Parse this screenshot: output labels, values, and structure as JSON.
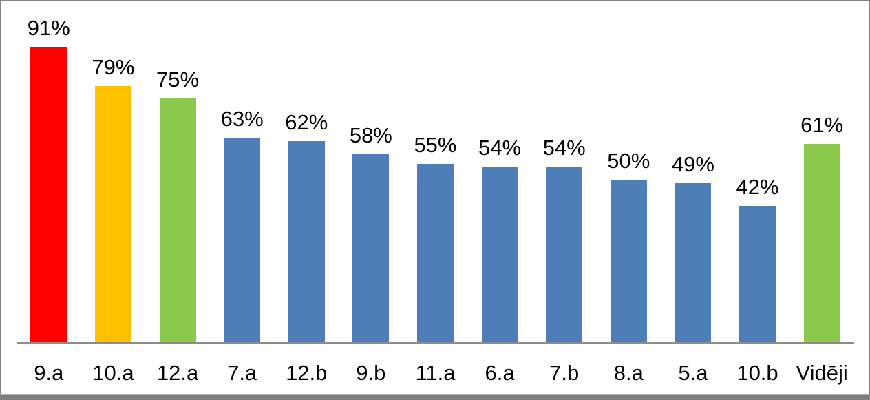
{
  "chart_data": {
    "type": "bar",
    "categories": [
      "9.a",
      "10.a",
      "12.a",
      "7.a",
      "12.b",
      "9.b",
      "11.a",
      "6.a",
      "7.b",
      "8.a",
      "5.a",
      "10.b",
      "Vidēji"
    ],
    "values": [
      91,
      79,
      75,
      63,
      62,
      58,
      55,
      54,
      54,
      50,
      49,
      42,
      61
    ],
    "value_labels": [
      "91%",
      "79%",
      "75%",
      "63%",
      "62%",
      "58%",
      "55%",
      "54%",
      "54%",
      "50%",
      "49%",
      "42%",
      "61%"
    ],
    "bar_colors": [
      "#FF0000",
      "#FFC000",
      "#8BC94C",
      "#4D7EB8",
      "#4D7EB8",
      "#4D7EB8",
      "#4D7EB8",
      "#4D7EB8",
      "#4D7EB8",
      "#4D7EB8",
      "#4D7EB8",
      "#4D7EB8",
      "#8BC94C"
    ],
    "title": "",
    "xlabel": "",
    "ylabel": "",
    "ylim": [
      0,
      100
    ],
    "grid": false,
    "legend": "none",
    "data_labels": true
  },
  "style": {
    "background": "#FFFFFF",
    "text_color": "#000000",
    "axis_line_color": "#8C8C8C",
    "frame_border_color": "#828282",
    "bottom_strip_color": "#7F7F7F",
    "highlight_red": "#FF0000",
    "highlight_orange": "#FFC000",
    "highlight_green": "#8BC94C",
    "series_blue": "#4D7EB8"
  }
}
